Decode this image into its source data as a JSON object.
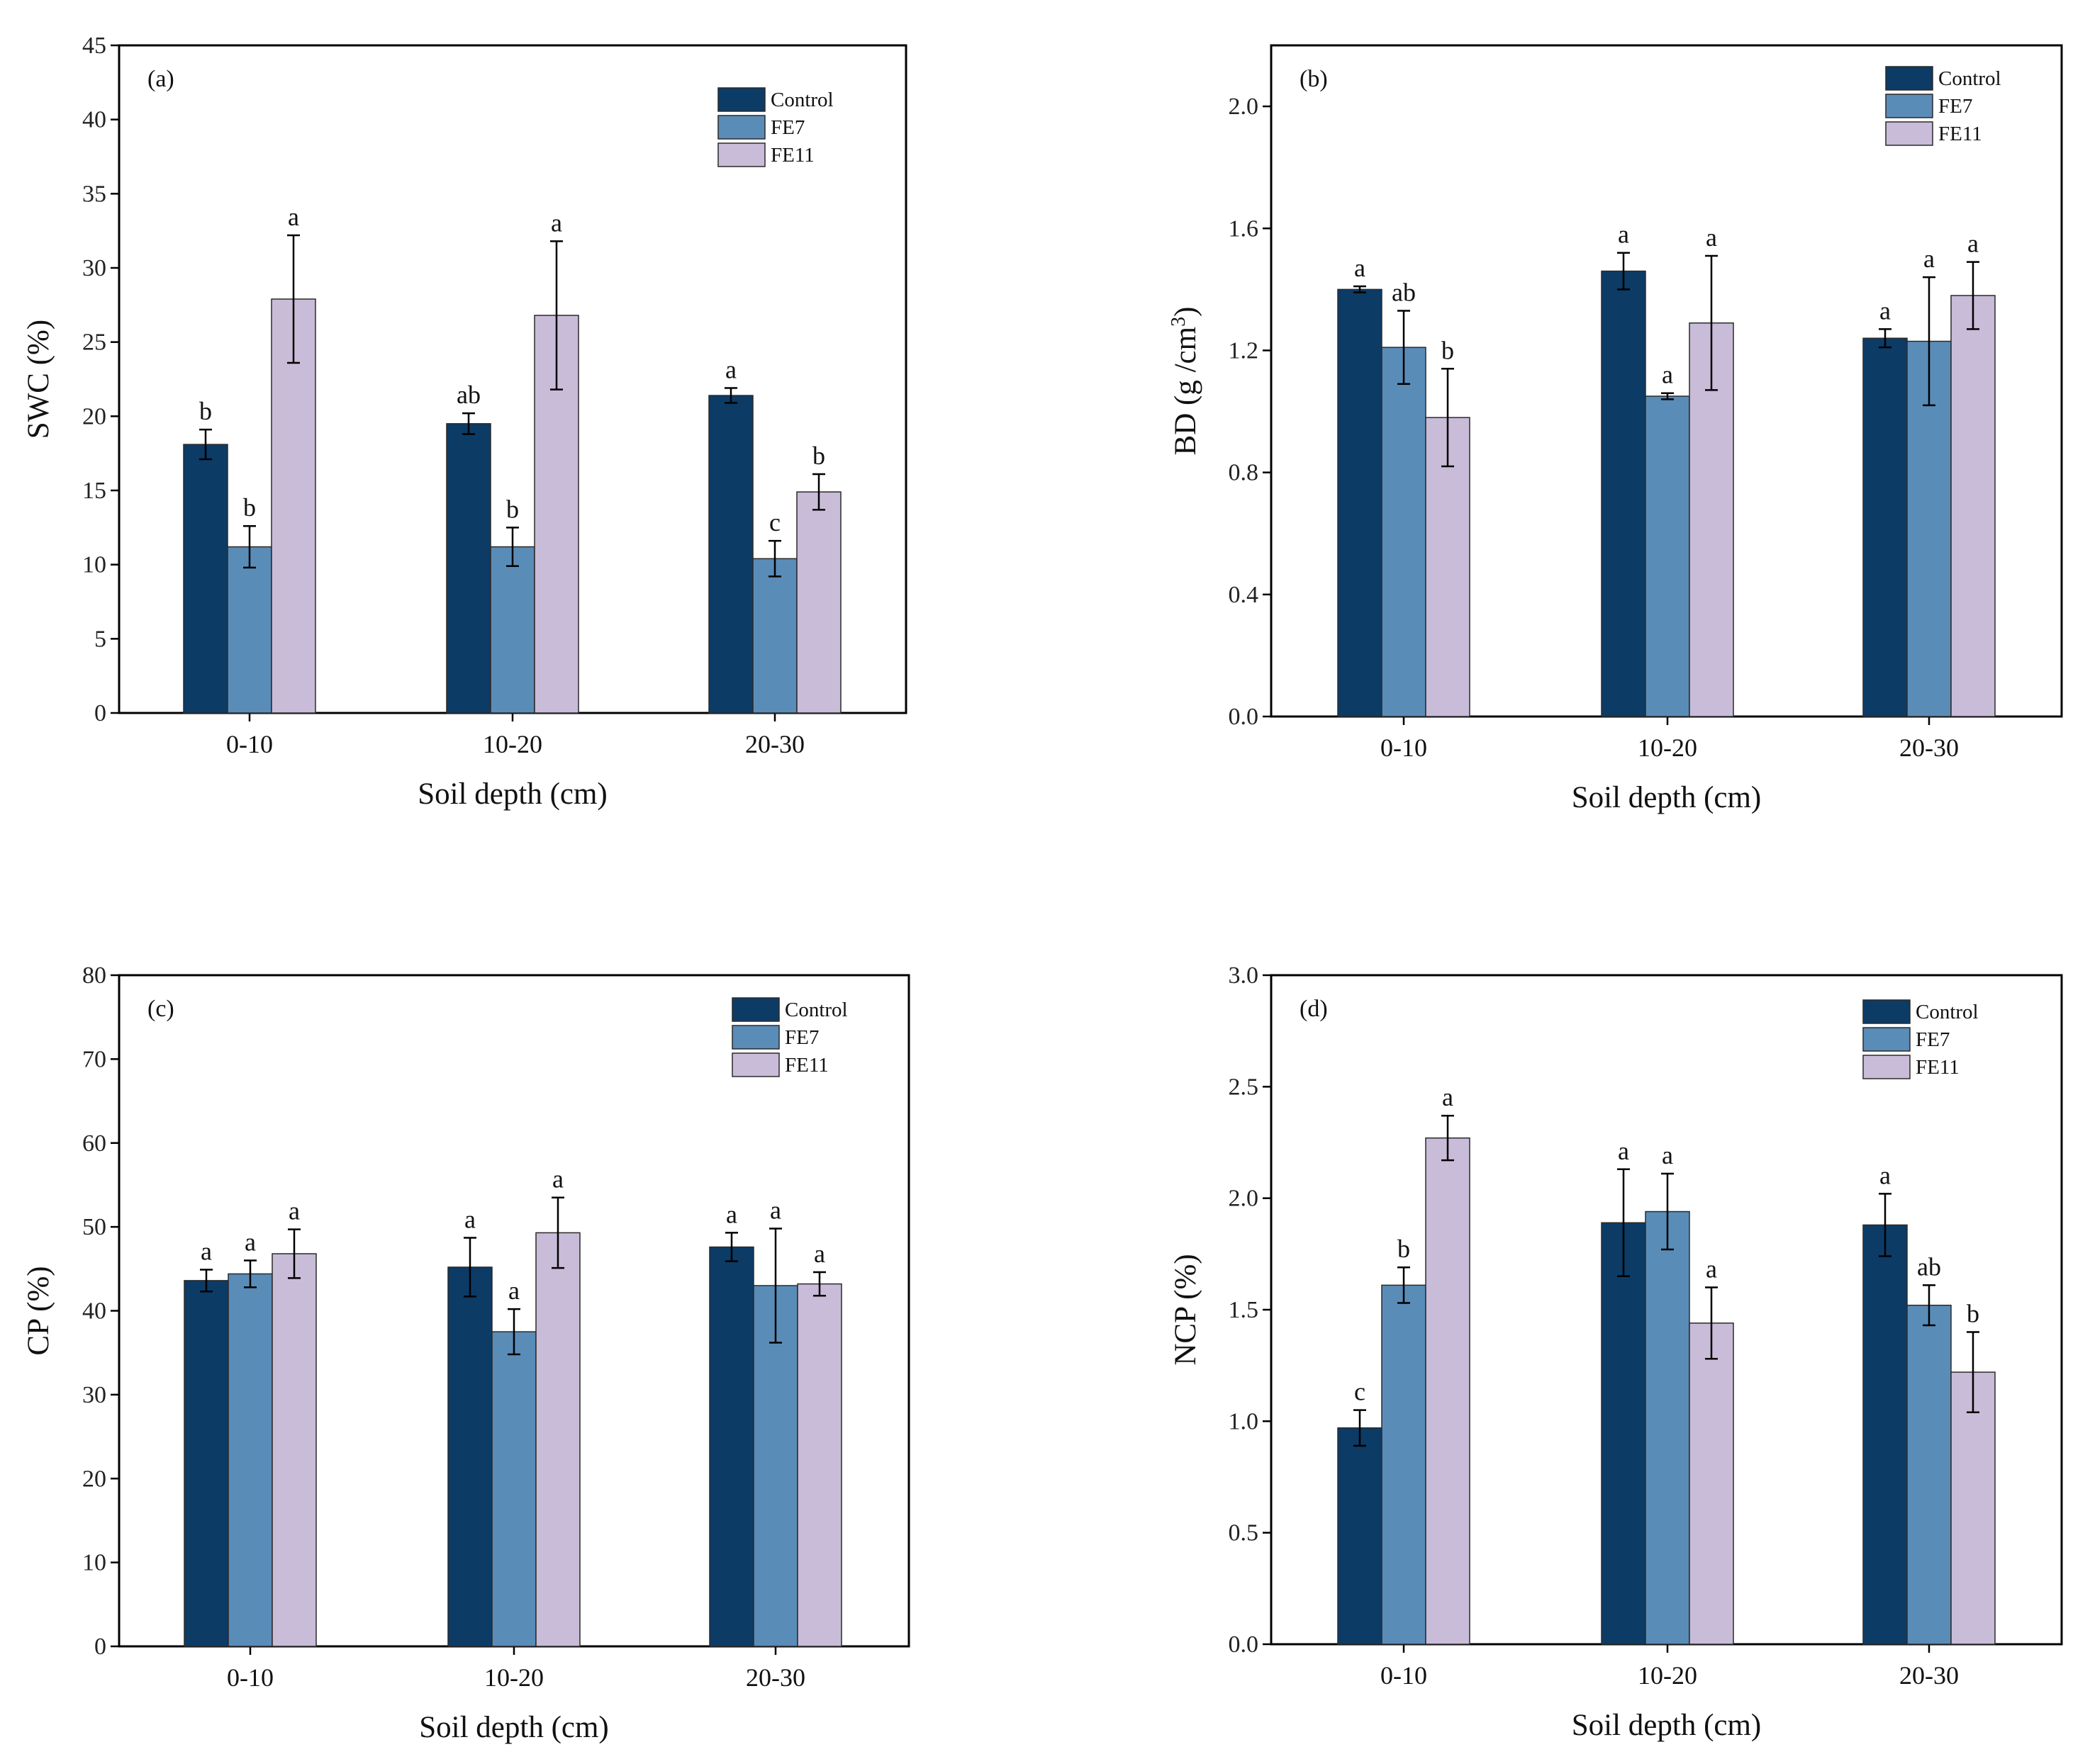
{
  "figure": {
    "series_names": [
      "Control",
      "FE7",
      "FE11"
    ],
    "series_colors": [
      "#0c3b66",
      "#5a8cb8",
      "#c9bcd8"
    ]
  },
  "chart_data": [
    {
      "type": "bar",
      "panel": "(a)",
      "xlabel": "Soil depth (cm)",
      "ylabel": "SWC (%)",
      "ylabel_parts": [
        "SWC (%)"
      ],
      "categories": [
        "0-10",
        "10-20",
        "20-30"
      ],
      "ylim": [
        0,
        45
      ],
      "yticks": [
        0,
        5,
        10,
        15,
        20,
        25,
        30,
        35,
        40,
        45
      ],
      "ytick_labels": [
        "0",
        "5",
        "10",
        "15",
        "20",
        "25",
        "30",
        "35",
        "40",
        "45"
      ],
      "legend": [
        "Control",
        "FE7",
        "FE11"
      ],
      "series": [
        {
          "name": "Control",
          "values": [
            18.1,
            19.5,
            21.4
          ],
          "errors": [
            1.0,
            0.7,
            0.5
          ],
          "letters": [
            "b",
            "ab",
            "a"
          ]
        },
        {
          "name": "FE7",
          "values": [
            11.2,
            11.2,
            10.4
          ],
          "errors": [
            1.4,
            1.3,
            1.2
          ],
          "letters": [
            "b",
            "b",
            "c"
          ]
        },
        {
          "name": "FE11",
          "values": [
            27.9,
            26.8,
            14.9
          ],
          "errors": [
            4.3,
            5.0,
            1.2
          ],
          "letters": [
            "a",
            "a",
            "b"
          ]
        }
      ]
    },
    {
      "type": "bar",
      "panel": "(b)",
      "xlabel": "Soil depth (cm)",
      "ylabel": "BD (g /cm3)",
      "ylabel_parts": [
        "BD (g /cm",
        "3",
        ")"
      ],
      "categories": [
        "0-10",
        "10-20",
        "20-30"
      ],
      "ylim": [
        0,
        2.2
      ],
      "yticks": [
        0,
        0.4,
        0.8,
        1.2,
        1.6,
        2.0
      ],
      "ytick_labels": [
        "0.0",
        "0.4",
        "0.8",
        "1.2",
        "1.6",
        "2.0"
      ],
      "legend": [
        "Control",
        "FE7",
        "FE11"
      ],
      "series": [
        {
          "name": "Control",
          "values": [
            1.4,
            1.46,
            1.24
          ],
          "errors": [
            0.01,
            0.06,
            0.03
          ],
          "letters": [
            "a",
            "a",
            "a"
          ]
        },
        {
          "name": "FE7",
          "values": [
            1.21,
            1.05,
            1.23
          ],
          "errors": [
            0.12,
            0.01,
            0.21
          ],
          "letters": [
            "ab",
            "a",
            "a"
          ]
        },
        {
          "name": "FE11",
          "values": [
            0.98,
            1.29,
            1.38
          ],
          "errors": [
            0.16,
            0.22,
            0.11
          ],
          "letters": [
            "b",
            "a",
            "a"
          ]
        }
      ]
    },
    {
      "type": "bar",
      "panel": "(c)",
      "xlabel": "Soil depth (cm)",
      "ylabel": "CP (%)",
      "ylabel_parts": [
        "CP (%)"
      ],
      "categories": [
        "0-10",
        "10-20",
        "20-30"
      ],
      "ylim": [
        0,
        80
      ],
      "yticks": [
        0,
        10,
        20,
        30,
        40,
        50,
        60,
        70,
        80
      ],
      "ytick_labels": [
        "0",
        "10",
        "20",
        "30",
        "40",
        "50",
        "60",
        "70",
        "80"
      ],
      "legend": [
        "Control",
        "FE7",
        "FE11"
      ],
      "series": [
        {
          "name": "Control",
          "values": [
            43.6,
            45.2,
            47.6
          ],
          "errors": [
            1.3,
            3.5,
            1.7
          ],
          "letters": [
            "a",
            "a",
            "a"
          ]
        },
        {
          "name": "FE7",
          "values": [
            44.4,
            37.5,
            43.0
          ],
          "errors": [
            1.6,
            2.7,
            6.8
          ],
          "letters": [
            "a",
            "a",
            "a"
          ]
        },
        {
          "name": "FE11",
          "values": [
            46.8,
            49.3,
            43.2
          ],
          "errors": [
            2.9,
            4.2,
            1.4
          ],
          "letters": [
            "a",
            "a",
            "a"
          ]
        }
      ]
    },
    {
      "type": "bar",
      "panel": "(d)",
      "xlabel": "Soil depth (cm)",
      "ylabel": "NCP (%)",
      "ylabel_parts": [
        "NCP (%)"
      ],
      "categories": [
        "0-10",
        "10-20",
        "20-30"
      ],
      "ylim": [
        0,
        3.0
      ],
      "yticks": [
        0,
        0.5,
        1.0,
        1.5,
        2.0,
        2.5,
        3.0
      ],
      "ytick_labels": [
        "0.0",
        "0.5",
        "1.0",
        "1.5",
        "2.0",
        "2.5",
        "3.0"
      ],
      "legend": [
        "Control",
        "FE7",
        "FE11"
      ],
      "series": [
        {
          "name": "Control",
          "values": [
            0.97,
            1.89,
            1.88
          ],
          "errors": [
            0.08,
            0.24,
            0.14
          ],
          "letters": [
            "c",
            "a",
            "a"
          ]
        },
        {
          "name": "FE7",
          "values": [
            1.61,
            1.94,
            1.52
          ],
          "errors": [
            0.08,
            0.17,
            0.09
          ],
          "letters": [
            "b",
            "a",
            "ab"
          ]
        },
        {
          "name": "FE11",
          "values": [
            2.27,
            1.44,
            1.22
          ],
          "errors": [
            0.1,
            0.16,
            0.18
          ],
          "letters": [
            "a",
            "a",
            "b"
          ]
        }
      ]
    }
  ]
}
